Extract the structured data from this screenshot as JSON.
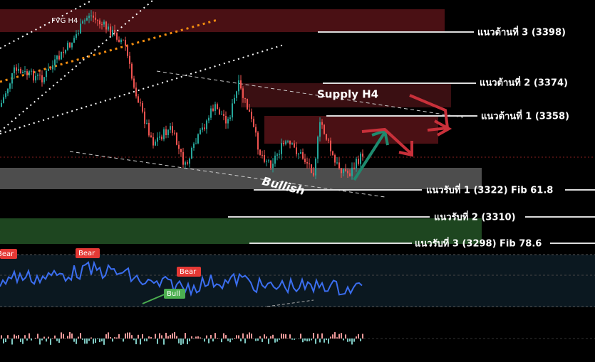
{
  "labels": {
    "fvg": "FVG H4",
    "supply": "Supply H4",
    "bullish": "Bullish"
  },
  "levels": {
    "resistance_3": "แนวต้านที่ 3 (3398)",
    "resistance_2": "แนวต้านที่ 2 (3374)",
    "resistance_1": "แนวต้านที่ 1 (3358)",
    "support_1": "แนวรับที่ 1 (3322) Fib 61.8",
    "support_2": "แนวรับที่ 2 (3310)",
    "support_3": "แนวรับที่ 3 (3298) Fib 78.6"
  },
  "oscillator": {
    "signals": [
      "Bear",
      "Bear",
      "Bear",
      "Bull"
    ]
  }
}
